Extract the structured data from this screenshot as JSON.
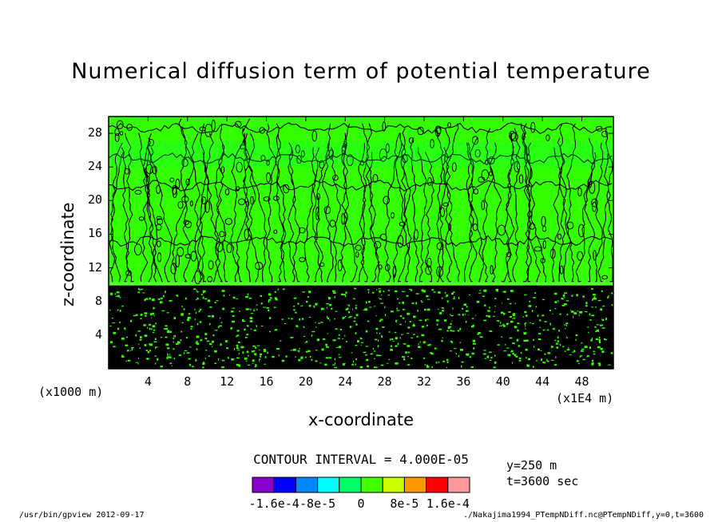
{
  "title": "Numerical diffusion term of potential temperature",
  "chart_data": {
    "type": "heatmap",
    "title": "Numerical diffusion term of potential temperature",
    "xlabel": "x-coordinate",
    "ylabel": "z-coordinate",
    "x_unit": "(x1E4 m)",
    "y_unit": "(x1000 m)",
    "xlim": [
      0,
      51.2
    ],
    "ylim": [
      0,
      30
    ],
    "x_ticks": [
      4,
      8,
      12,
      16,
      20,
      24,
      28,
      32,
      36,
      40,
      44,
      48
    ],
    "y_ticks": [
      4,
      8,
      12,
      16,
      20,
      24,
      28
    ],
    "contour_interval": "CONTOUR INTERVAL = 4.000E-05",
    "levels": [
      -0.0002,
      -0.00016,
      -0.00012,
      -8e-05,
      -4e-05,
      0,
      4e-05,
      8e-05,
      0.00012,
      0.00016,
      0.0002
    ],
    "colorbar_labels": [
      "-1.6e-4",
      "-8e-5",
      "0",
      "8e-5",
      "1.6e-4"
    ],
    "colors": [
      "#8800cc",
      "#0000ff",
      "#0088ff",
      "#00ffff",
      "#00ff66",
      "#44ff00",
      "#ccff00",
      "#ff9900",
      "#ff0000",
      "#ff9999"
    ],
    "dominant_color": "#33ff00",
    "dense_region_top_z": 10,
    "annotations": [
      "y=250 m",
      "t=3600 sec"
    ]
  },
  "meta": {
    "y": "y=250 m",
    "t": "t=3600 sec"
  },
  "footer": {
    "left": "/usr/bin/gpview   2012-09-17",
    "right": "./Nakajima1994_PTempNDiff.nc@PTempNDiff,y=0,t=3600"
  }
}
